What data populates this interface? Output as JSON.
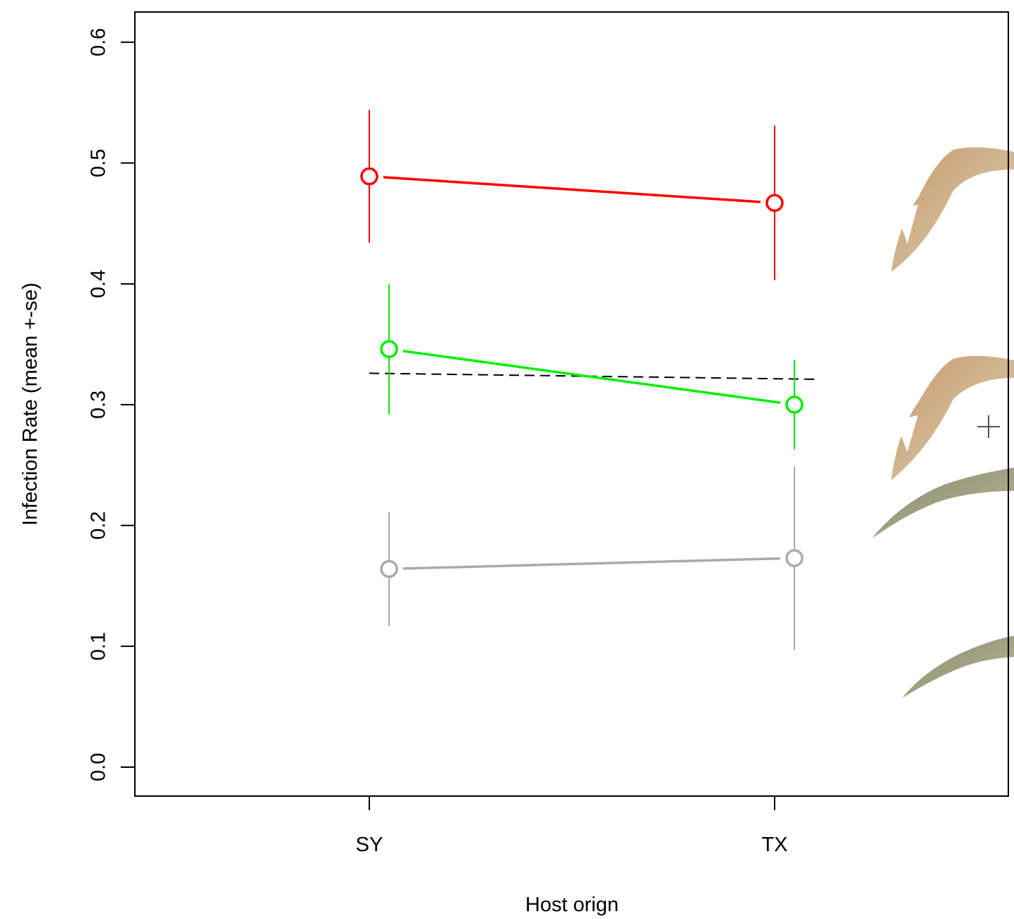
{
  "chart_data": {
    "type": "line",
    "x_label": "Host orign",
    "y_label": "Infection Rate (mean +-se)",
    "categories": [
      "SY",
      "TX"
    ],
    "ylim": [
      -0.024,
      0.625
    ],
    "yticks": [
      {
        "value": 0,
        "label": "0.0"
      },
      0.1,
      0.2,
      0.3,
      0.4,
      0.5,
      0.6
    ],
    "series": [
      {
        "color": "#ff0000",
        "values": [
          0.489,
          0.467
        ],
        "errors": [
          0.055,
          0.064
        ]
      },
      {
        "color": "#00ee00",
        "values": [
          0.346,
          0.3
        ],
        "errors": [
          0.054,
          0.037
        ]
      },
      {
        "color": "#aaaaaa",
        "values": [
          0.164,
          0.173
        ],
        "errors": [
          0.047,
          0.076
        ]
      }
    ],
    "reference_line": {
      "color": "#000000",
      "dashed": true,
      "values": [
        0.326,
        0.321
      ]
    }
  }
}
